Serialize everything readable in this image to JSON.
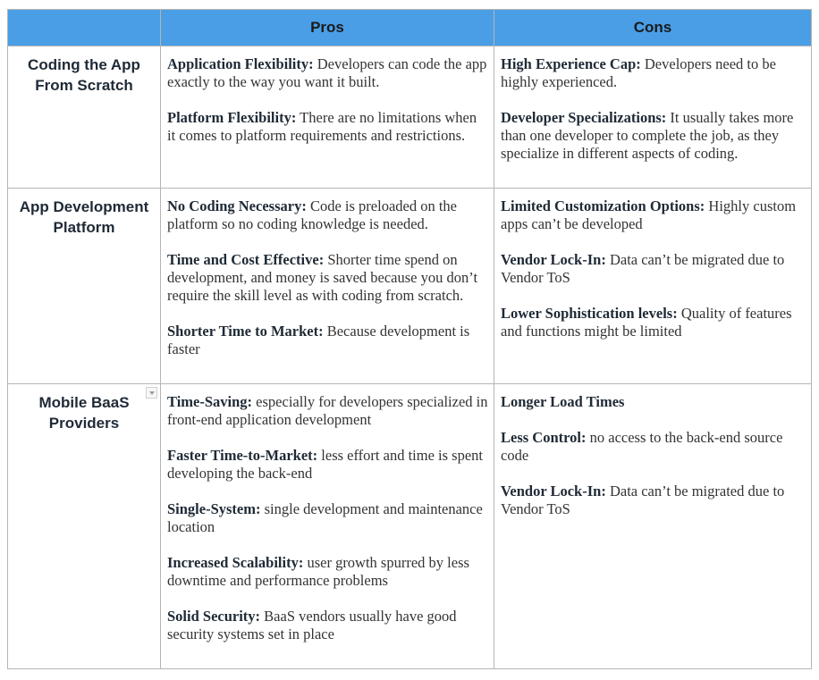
{
  "header": {
    "corner": "",
    "pros": "Pros",
    "cons": "Cons"
  },
  "rows": [
    {
      "title_line1": "Coding the App",
      "title_line2": "From Scratch",
      "pros": [
        {
          "term": "Application Flexibility",
          "sep": ":",
          "text": " Developers can code the app exactly to the way you want it built."
        },
        {
          "term": "Platform Flexibility:",
          "sep": "",
          "text": " There are no limitations when it comes to platform requirements and restrictions."
        }
      ],
      "cons": [
        {
          "term": "High Experience Cap:",
          "sep": "",
          "text": " Developers need to be highly experienced."
        },
        {
          "term": "Developer Specializations:",
          "sep": "",
          "text": " It usually takes more than one developer to complete the job, as they specialize in different aspects of coding."
        }
      ]
    },
    {
      "title_line1": "App Development",
      "title_line2": "Platform",
      "pros": [
        {
          "term": "No Coding Necessary:",
          "sep": "",
          "text": " Code is preloaded on the platform so no coding knowledge is needed."
        },
        {
          "term": "Time and Cost Effective",
          "sep": ":",
          "text": " Shorter time spend on development, and money is saved because you don’t require the skill level as with coding from scratch."
        },
        {
          "term": "Shorter Time to Market:",
          "sep": "",
          "text": " Because development is faster"
        }
      ],
      "cons": [
        {
          "term": "Limited Customization Options",
          "sep": ":",
          "text": " Highly custom apps can’t be developed"
        },
        {
          "term": "Vendor Lock-In:",
          "sep": "",
          "text": " Data can’t be migrated due to Vendor ToS"
        },
        {
          "term": "Lower Sophistication levels",
          "sep": ":",
          "text": " Quality of features and functions might be limited"
        }
      ]
    },
    {
      "title_line1": "Mobile BaaS",
      "title_line2": "Providers",
      "pros": [
        {
          "term": "Time-Saving:",
          "sep": "",
          "text": " especially for developers specialized in front-end application development"
        },
        {
          "term": "Faster Time-to-Market:",
          "sep": "",
          "text": " less effort and time is spent developing the back-end"
        },
        {
          "term": "Single-System",
          "sep": ":",
          "text": " single development and maintenance location"
        },
        {
          "term": "Increased Scalability:",
          "sep": "",
          "text": " user growth spurred by less downtime and performance problems"
        },
        {
          "term": "Solid Security:",
          "sep": "",
          "text": " BaaS vendors usually have good security systems set in place"
        }
      ],
      "cons": [
        {
          "term": "Longer Load Times",
          "sep": "",
          "text": ""
        },
        {
          "term": "Less Control:",
          "sep": "",
          "text": " no access to the back-end source code"
        },
        {
          "term": "Vendor Lock-In:",
          "sep": "",
          "text": " Data can’t be migrated due to Vendor ToS"
        }
      ]
    }
  ]
}
